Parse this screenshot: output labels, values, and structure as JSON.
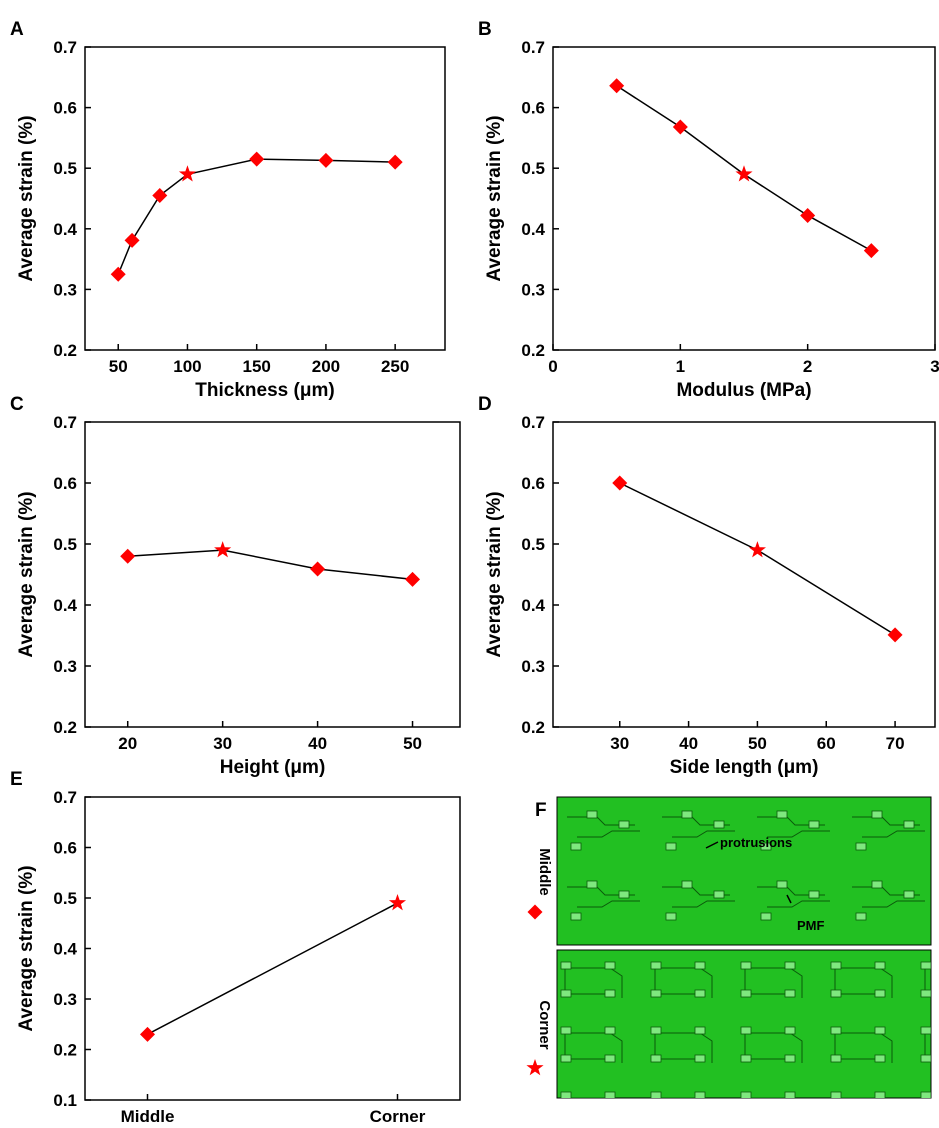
{
  "chart_data": [
    {
      "type": "line",
      "label": "A",
      "xlabel": "Thickness (μm)",
      "ylabel": "Average strain (%)",
      "x": [
        50,
        60,
        80,
        100,
        150,
        200,
        250
      ],
      "y": [
        0.325,
        0.381,
        0.455,
        0.49,
        0.515,
        0.513,
        0.51
      ],
      "markers": [
        "diamond",
        "diamond",
        "diamond",
        "star",
        "diamond",
        "diamond",
        "diamond"
      ],
      "color": "#ff0000",
      "line_color": "#000000",
      "xlim": [
        26,
        286
      ],
      "xticks": [
        50,
        100,
        150,
        200,
        250
      ],
      "ylim": [
        0.2,
        0.7
      ],
      "yticks": [
        0.2,
        0.3,
        0.4,
        0.5,
        0.6,
        0.7
      ]
    },
    {
      "type": "line",
      "label": "B",
      "xlabel": "Modulus (MPa)",
      "ylabel": "Average strain (%)",
      "x": [
        0.5,
        1,
        1.5,
        2,
        2.5
      ],
      "y": [
        0.636,
        0.568,
        0.49,
        0.422,
        0.364
      ],
      "markers": [
        "diamond",
        "diamond",
        "star",
        "diamond",
        "diamond"
      ],
      "color": "#ff0000",
      "line_color": "#000000",
      "xlim": [
        0,
        3
      ],
      "xticks": [
        0,
        1,
        2,
        3
      ],
      "ylim": [
        0.2,
        0.7
      ],
      "yticks": [
        0.2,
        0.3,
        0.4,
        0.5,
        0.6,
        0.7
      ]
    },
    {
      "type": "line",
      "label": "C",
      "xlabel": "Height (μm)",
      "ylabel": "Average strain (%)",
      "x": [
        20,
        30,
        40,
        50
      ],
      "y": [
        0.48,
        0.49,
        0.459,
        0.442
      ],
      "markers": [
        "diamond",
        "star",
        "diamond",
        "diamond"
      ],
      "color": "#ff0000",
      "line_color": "#000000",
      "xlim": [
        15.5,
        55
      ],
      "xticks": [
        20,
        30,
        40,
        50
      ],
      "ylim": [
        0.2,
        0.7
      ],
      "yticks": [
        0.2,
        0.3,
        0.4,
        0.5,
        0.6,
        0.7
      ]
    },
    {
      "type": "line",
      "label": "D",
      "xlabel": "Side length (μm)",
      "ylabel": "Average strain (%)",
      "x": [
        30,
        50,
        70
      ],
      "y": [
        0.6,
        0.49,
        0.351
      ],
      "markers": [
        "diamond",
        "star",
        "diamond"
      ],
      "color": "#ff0000",
      "line_color": "#000000",
      "xlim": [
        20.3,
        75.8
      ],
      "xticks": [
        30,
        40,
        50,
        60,
        70
      ],
      "ylim": [
        0.2,
        0.7
      ],
      "yticks": [
        0.2,
        0.3,
        0.4,
        0.5,
        0.6,
        0.7
      ]
    },
    {
      "type": "category_line",
      "label": "E",
      "ylabel": "Average strain (%)",
      "categories": [
        "Middle",
        "Corner"
      ],
      "values": [
        0.23,
        0.49
      ],
      "markers": [
        "diamond",
        "star"
      ],
      "color": "#ff0000",
      "line_color": "#000000",
      "ylim": [
        0.1,
        0.7
      ],
      "yticks": [
        0.1,
        0.2,
        0.3,
        0.4,
        0.5,
        0.6,
        0.7
      ]
    }
  ],
  "panel_f": {
    "label": "F",
    "rows": [
      {
        "name": "Middle",
        "marker": "diamond"
      },
      {
        "name": "Corner",
        "marker": "star"
      }
    ],
    "annotations": [
      "protrusions",
      "PMF"
    ],
    "color": "#ff0000"
  }
}
